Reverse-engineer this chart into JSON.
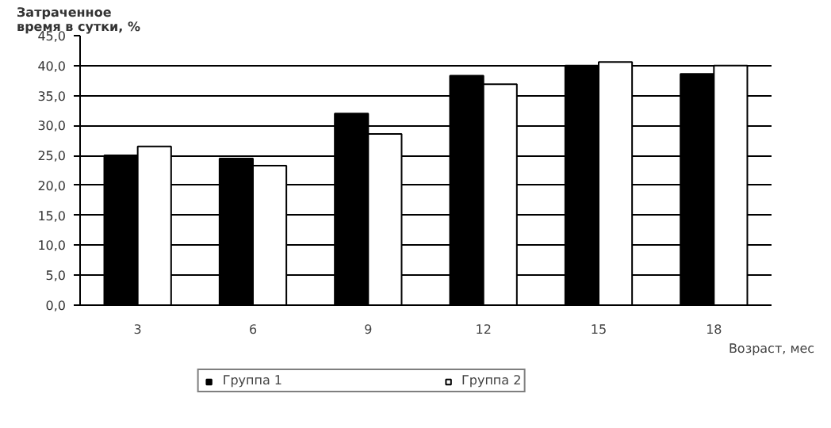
{
  "chart_data": {
    "type": "bar",
    "ylabel": "Затраченное время в сутки, %",
    "xlabel": "Возраст, мес",
    "categories": [
      "3",
      "6",
      "9",
      "12",
      "15",
      "18"
    ],
    "series": [
      {
        "name": "Группа 1",
        "color": "#000000",
        "values": [
          25.0,
          24.5,
          32.0,
          38.3,
          40.0,
          38.6
        ]
      },
      {
        "name": "Группа 2",
        "color": "#ffffff",
        "values": [
          26.5,
          23.3,
          28.6,
          36.9,
          40.6,
          40.0
        ]
      }
    ],
    "ylim": [
      0,
      45
    ],
    "yticks": [
      {
        "value": 0,
        "label": "0,0"
      },
      {
        "value": 5,
        "label": "5,0"
      },
      {
        "value": 10,
        "label": "10,0"
      },
      {
        "value": 15,
        "label": "15,0"
      },
      {
        "value": 20,
        "label": "20,0"
      },
      {
        "value": 25,
        "label": "25,0"
      },
      {
        "value": 30,
        "label": "30,0"
      },
      {
        "value": 35,
        "label": "35,0"
      },
      {
        "value": 40,
        "label": "40,0"
      },
      {
        "value": 45,
        "label": "45,0"
      }
    ],
    "grid": "y",
    "legend": "bottom"
  }
}
